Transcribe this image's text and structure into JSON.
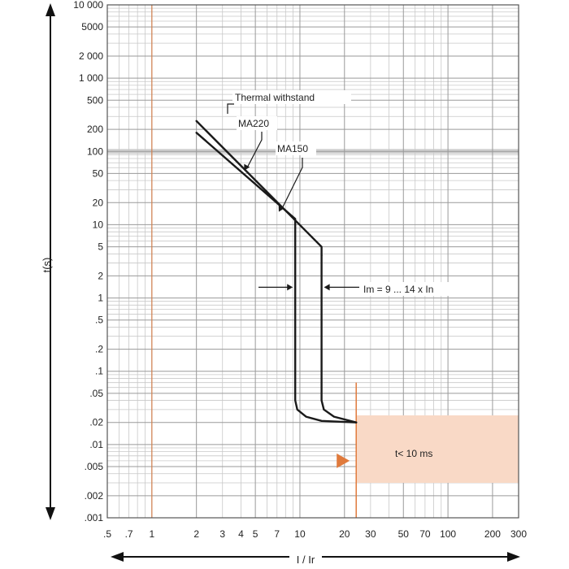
{
  "chart_data": {
    "type": "line",
    "xscale": "log",
    "yscale": "log",
    "xlim": [
      0.5,
      300
    ],
    "ylim": [
      0.001,
      10000
    ],
    "grid": true,
    "xlabel": "I / Ir",
    "ylabel": "t(s)",
    "x_tick_labels": [
      {
        "v": 0.5,
        "t": ".5"
      },
      {
        "v": 0.7,
        "t": ".7"
      },
      {
        "v": 1,
        "t": "1"
      },
      {
        "v": 2,
        "t": "2"
      },
      {
        "v": 3,
        "t": "3"
      },
      {
        "v": 4,
        "t": "4"
      },
      {
        "v": 5,
        "t": "5"
      },
      {
        "v": 7,
        "t": "7"
      },
      {
        "v": 10,
        "t": "10"
      },
      {
        "v": 20,
        "t": "20"
      },
      {
        "v": 30,
        "t": "30"
      },
      {
        "v": 50,
        "t": "50"
      },
      {
        "v": 70,
        "t": "70"
      },
      {
        "v": 100,
        "t": "100"
      },
      {
        "v": 200,
        "t": "200"
      },
      {
        "v": 300,
        "t": "300"
      }
    ],
    "y_tick_labels": [
      {
        "v": 10000,
        "t": "10 000"
      },
      {
        "v": 5000,
        "t": "5000"
      },
      {
        "v": 2000,
        "t": "2 000"
      },
      {
        "v": 1000,
        "t": "1 000"
      },
      {
        "v": 500,
        "t": "500"
      },
      {
        "v": 200,
        "t": "200"
      },
      {
        "v": 100,
        "t": "100"
      },
      {
        "v": 50,
        "t": "50"
      },
      {
        "v": 20,
        "t": "20"
      },
      {
        "v": 10,
        "t": "10"
      },
      {
        "v": 5,
        "t": "5"
      },
      {
        "v": 2,
        "t": "2"
      },
      {
        "v": 1,
        "t": "1"
      },
      {
        "v": 0.5,
        "t": ".5"
      },
      {
        "v": 0.2,
        "t": ".2"
      },
      {
        "v": 0.1,
        "t": ".1"
      },
      {
        "v": 0.05,
        "t": ".05"
      },
      {
        "v": 0.02,
        "t": ".02"
      },
      {
        "v": 0.01,
        "t": ".01"
      },
      {
        "v": 0.005,
        "t": ".005"
      },
      {
        "v": 0.002,
        "t": ".002"
      },
      {
        "v": 0.001,
        "t": ".001"
      }
    ],
    "series": [
      {
        "name": "MA220",
        "points": [
          [
            2,
            260
          ],
          [
            14,
            5
          ],
          [
            14,
            3.8
          ]
        ]
      },
      {
        "name": "MA150",
        "points": [
          [
            2,
            180
          ],
          [
            9.3,
            12
          ],
          [
            9.3,
            0.04
          ],
          [
            9.6,
            0.03
          ],
          [
            11,
            0.024
          ],
          [
            14,
            0.021
          ],
          [
            24,
            0.02
          ]
        ]
      },
      {
        "name": "",
        "points": [
          [
            14,
            3.8
          ],
          [
            14,
            0.04
          ],
          [
            14.5,
            0.03
          ],
          [
            17,
            0.024
          ],
          [
            24,
            0.02
          ]
        ]
      }
    ],
    "shaded_region": {
      "x": [
        24,
        300
      ],
      "y": [
        0.003,
        0.025
      ],
      "color": "#f9d9c6"
    },
    "orange_line_x": 24,
    "orange_ref_line_x": 1,
    "gray_band_y": 100,
    "annotations": {
      "thermal": "Thermal withstand",
      "ma220": "MA220",
      "ma150": "MA150",
      "im": "Im = 9 ... 14 x In",
      "tlt": "t< 10 ms"
    },
    "colors": {
      "curve": "#1a1a1a",
      "grid_major": "#9a9a9a",
      "grid_minor": "#c8c8c8",
      "band": "#cfcfcf",
      "orange": "#e07a3c",
      "shade": "#f9d9c6"
    }
  }
}
